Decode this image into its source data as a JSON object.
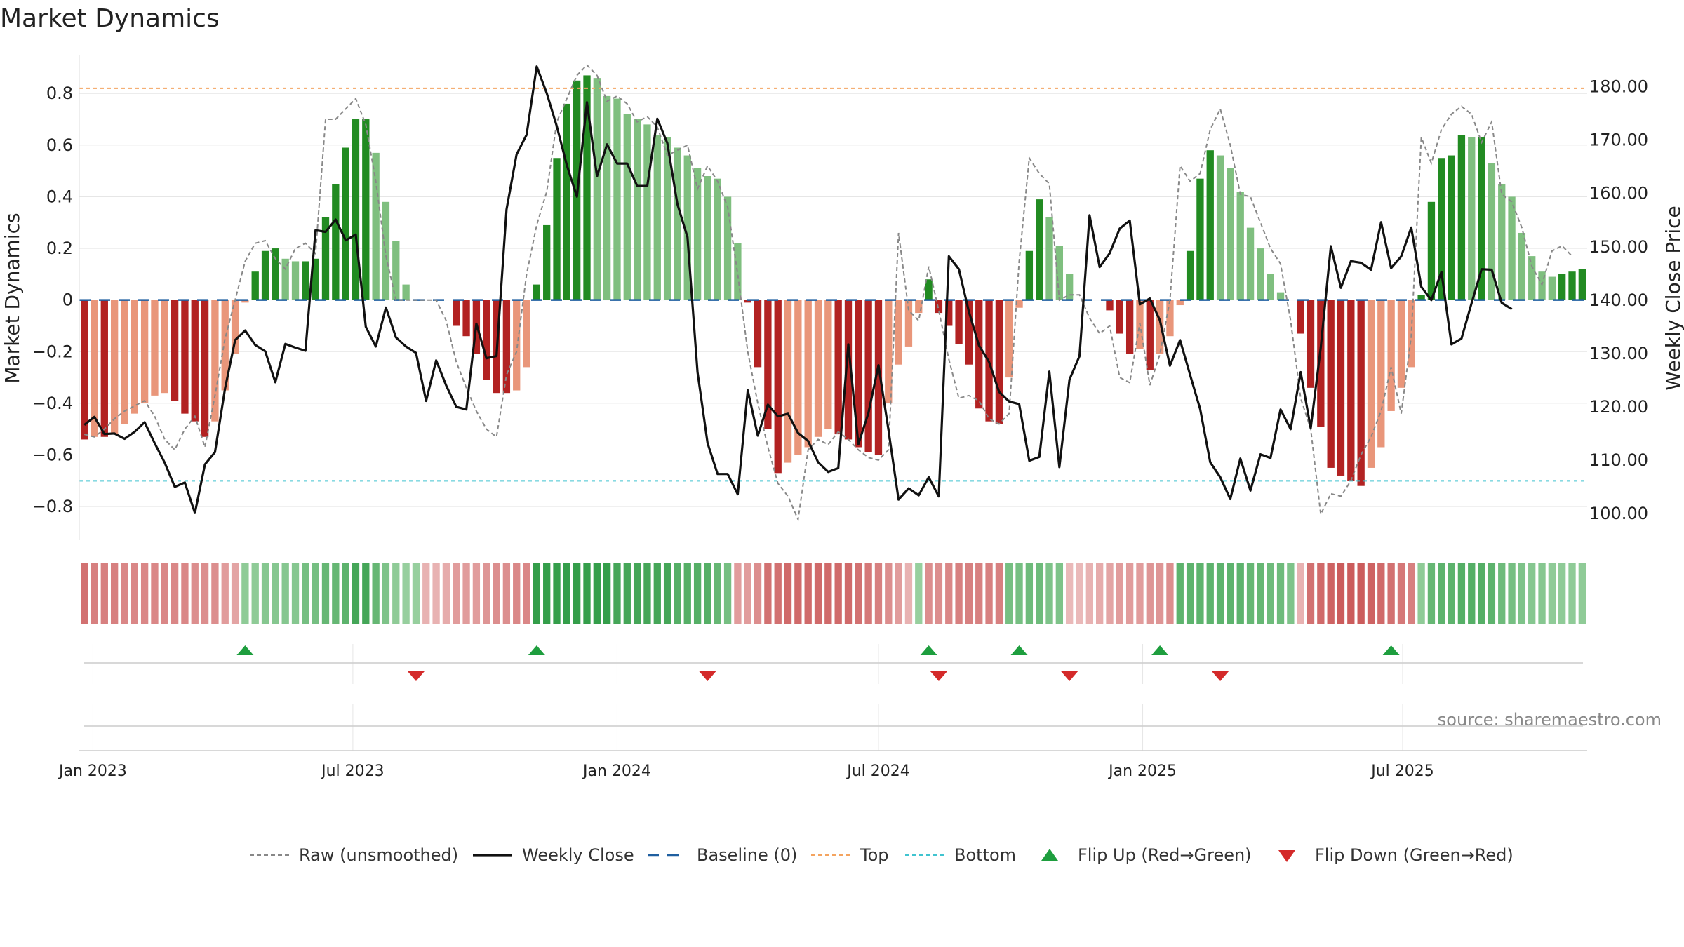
{
  "chart_data": {
    "type": "bar",
    "title": "Market Dynamics",
    "ylabel_left": "Market Dynamics",
    "ylabel_right": "Weekly Close Price",
    "ylim_left": [
      -0.93,
      0.95
    ],
    "ylim_right": [
      95,
      186
    ],
    "yticks_left": [
      -0.8,
      -0.6,
      -0.4,
      -0.2,
      0,
      0.2,
      0.4,
      0.6,
      0.8
    ],
    "yticks_left_labels": [
      "−0.8",
      "−0.6",
      "−0.4",
      "−0.2",
      "0",
      "0.2",
      "0.4",
      "0.6",
      "0.8"
    ],
    "yticks_right": [
      100,
      110,
      120,
      130,
      140,
      150,
      160,
      170,
      180
    ],
    "yticks_right_labels": [
      "100.00",
      "110.00",
      "120.00",
      "130.00",
      "140.00",
      "150.00",
      "160.00",
      "170.00",
      "180.00"
    ],
    "x_start": "2022-12-26",
    "x_step_days": 7,
    "date_ticks": [
      {
        "label": "Jan 2023",
        "date": "2023-01-01"
      },
      {
        "label": "Jul 2023",
        "date": "2023-07-01"
      },
      {
        "label": "Jan 2024",
        "date": "2024-01-01"
      },
      {
        "label": "Jul 2024",
        "date": "2024-07-01"
      },
      {
        "label": "Jan 2025",
        "date": "2025-01-01"
      },
      {
        "label": "Jul 2025",
        "date": "2025-07-01"
      }
    ],
    "top_level": 0.82,
    "bottom_level": -0.7,
    "baseline": 0,
    "smoothed": [
      -0.54,
      -0.53,
      -0.53,
      -0.52,
      -0.48,
      -0.44,
      -0.4,
      -0.37,
      -0.36,
      -0.39,
      -0.44,
      -0.47,
      -0.53,
      -0.47,
      -0.35,
      -0.21,
      -0.01,
      0.11,
      0.19,
      0.2,
      0.16,
      0.15,
      0.15,
      0.16,
      0.32,
      0.45,
      0.59,
      0.7,
      0.7,
      0.57,
      0.38,
      0.23,
      0.06,
      0.0,
      0.0,
      0.0,
      0.0,
      -0.1,
      -0.14,
      -0.21,
      -0.31,
      -0.36,
      -0.36,
      -0.35,
      -0.26,
      0.06,
      0.29,
      0.55,
      0.76,
      0.85,
      0.87,
      0.86,
      0.79,
      0.78,
      0.72,
      0.7,
      0.68,
      0.64,
      0.63,
      0.59,
      0.56,
      0.51,
      0.48,
      0.47,
      0.4,
      0.22,
      -0.01,
      -0.26,
      -0.5,
      -0.67,
      -0.63,
      -0.6,
      -0.57,
      -0.53,
      -0.5,
      -0.52,
      -0.54,
      -0.57,
      -0.59,
      -0.6,
      -0.4,
      -0.25,
      -0.18,
      -0.05,
      0.08,
      -0.05,
      -0.1,
      -0.17,
      -0.25,
      -0.42,
      -0.47,
      -0.48,
      -0.3,
      -0.03,
      0.19,
      0.39,
      0.32,
      0.21,
      0.1,
      0.0,
      0.0,
      0.0,
      -0.04,
      -0.13,
      -0.21,
      -0.19,
      -0.27,
      -0.21,
      -0.14,
      -0.02,
      0.19,
      0.47,
      0.58,
      0.56,
      0.51,
      0.42,
      0.28,
      0.2,
      0.1,
      0.03,
      0.0,
      -0.13,
      -0.34,
      -0.49,
      -0.65,
      -0.68,
      -0.7,
      -0.72,
      -0.65,
      -0.57,
      -0.43,
      -0.34,
      -0.26,
      0.02,
      0.38,
      0.55,
      0.56,
      0.64,
      0.63,
      0.63,
      0.53,
      0.45,
      0.4,
      0.26,
      0.17,
      0.11,
      0.09,
      0.1,
      0.11,
      0.12
    ],
    "raw": [
      -0.52,
      -0.53,
      -0.5,
      -0.46,
      -0.43,
      -0.41,
      -0.39,
      -0.45,
      -0.54,
      -0.58,
      -0.5,
      -0.45,
      -0.57,
      -0.37,
      -0.15,
      0.0,
      0.15,
      0.22,
      0.23,
      0.16,
      0.12,
      0.2,
      0.22,
      0.18,
      0.7,
      0.7,
      0.74,
      0.78,
      0.68,
      0.46,
      0.17,
      0.0,
      0.0,
      0.0,
      0.0,
      0.0,
      -0.08,
      -0.24,
      -0.34,
      -0.43,
      -0.5,
      -0.53,
      -0.29,
      -0.2,
      0.1,
      0.29,
      0.42,
      0.69,
      0.78,
      0.87,
      0.91,
      0.87,
      0.77,
      0.79,
      0.76,
      0.69,
      0.71,
      0.67,
      0.56,
      0.58,
      0.6,
      0.43,
      0.52,
      0.46,
      0.36,
      0.1,
      -0.2,
      -0.4,
      -0.57,
      -0.71,
      -0.76,
      -0.85,
      -0.58,
      -0.54,
      -0.56,
      -0.51,
      -0.54,
      -0.58,
      -0.61,
      -0.62,
      -0.58,
      0.26,
      -0.04,
      -0.08,
      0.13,
      -0.04,
      -0.23,
      -0.38,
      -0.37,
      -0.39,
      -0.46,
      -0.48,
      -0.44,
      0.15,
      0.55,
      0.49,
      0.45,
      0.0,
      0.02,
      0.02,
      -0.07,
      -0.13,
      -0.1,
      -0.3,
      -0.32,
      -0.09,
      -0.33,
      -0.21,
      0.0,
      0.52,
      0.46,
      0.49,
      0.66,
      0.74,
      0.6,
      0.41,
      0.4,
      0.3,
      0.2,
      0.14,
      -0.08,
      -0.38,
      -0.5,
      -0.83,
      -0.75,
      -0.76,
      -0.7,
      -0.6,
      -0.53,
      -0.43,
      -0.26,
      -0.44,
      -0.14,
      0.63,
      0.53,
      0.66,
      0.72,
      0.75,
      0.72,
      0.61,
      0.69,
      0.41,
      0.38,
      0.28,
      0.13,
      0.06,
      0.19,
      0.21,
      0.17
    ],
    "close": [
      116.6,
      118.1,
      114.9,
      115.0,
      114.0,
      115.3,
      117.1,
      113.2,
      109.5,
      105.0,
      105.8,
      100.1,
      109.2,
      111.5,
      123.4,
      132.5,
      134.3,
      131.6,
      130.4,
      124.6,
      131.8,
      131.1,
      130.5,
      153.1,
      152.8,
      155.1,
      151.2,
      152.3,
      135.0,
      131.3,
      138.6,
      133.0,
      131.3,
      130.1,
      121.1,
      128.7,
      124.0,
      120.0,
      119.5,
      135.6,
      129.1,
      129.5,
      157.0,
      167.3,
      171.0,
      183.8,
      178.8,
      172.6,
      165.3,
      159.4,
      177.1,
      163.2,
      169.2,
      165.6,
      165.6,
      161.4,
      161.4,
      174.0,
      169.4,
      158.0,
      151.8,
      126.5,
      113.2,
      107.4,
      107.4,
      103.6,
      123.1,
      114.6,
      120.4,
      118.2,
      118.7,
      115.1,
      113.6,
      109.6,
      107.8,
      108.5,
      131.7,
      113.0,
      118.8,
      127.8,
      115.6,
      102.6,
      104.7,
      103.4,
      106.8,
      103.2,
      148.2,
      145.8,
      137.8,
      131.5,
      128.4,
      122.8,
      121.0,
      120.5,
      109.9,
      110.6,
      126.6,
      108.7,
      125.1,
      129.5,
      155.9,
      146.2,
      148.8,
      153.4,
      154.9,
      139.2,
      140.3,
      136.2,
      127.7,
      132.5,
      126.0,
      119.6,
      109.6,
      106.8,
      102.7,
      110.3,
      104.3,
      111.1,
      110.4,
      119.5,
      115.8,
      126.5,
      116.0,
      131.1,
      150.1,
      142.3,
      147.3,
      147.0,
      145.7,
      154.6,
      146.0,
      148.2,
      153.6,
      142.5,
      140.0,
      145.3,
      131.7,
      132.8,
      139.4,
      145.8,
      145.7,
      139.5,
      138.3
    ],
    "strip": [
      -0.7,
      -0.6,
      -0.6,
      -0.6,
      -0.55,
      -0.55,
      -0.55,
      -0.55,
      -0.55,
      -0.55,
      -0.55,
      -0.5,
      -0.5,
      -0.5,
      -0.4,
      -0.35,
      0.35,
      0.35,
      0.4,
      0.4,
      0.4,
      0.4,
      0.5,
      0.5,
      0.6,
      0.6,
      0.65,
      0.8,
      0.8,
      0.6,
      0.45,
      0.35,
      0.3,
      0.3,
      -0.25,
      -0.25,
      -0.3,
      -0.4,
      -0.4,
      -0.4,
      -0.45,
      -0.5,
      -0.5,
      -0.55,
      -0.55,
      0.9,
      0.9,
      0.9,
      0.9,
      0.9,
      0.9,
      0.9,
      0.9,
      0.8,
      0.8,
      0.8,
      0.8,
      0.8,
      0.8,
      0.7,
      0.7,
      0.7,
      0.7,
      0.6,
      0.5,
      -0.4,
      -0.4,
      -0.5,
      -0.7,
      -0.7,
      -0.75,
      -0.75,
      -0.75,
      -0.75,
      -0.75,
      -0.75,
      -0.75,
      -0.7,
      -0.65,
      -0.6,
      -0.5,
      -0.4,
      -0.25,
      0.3,
      -0.5,
      -0.5,
      -0.55,
      -0.6,
      -0.6,
      -0.6,
      -0.6,
      -0.6,
      0.5,
      0.5,
      0.55,
      0.55,
      0.45,
      0.45,
      -0.2,
      -0.2,
      -0.25,
      -0.3,
      -0.35,
      -0.4,
      -0.4,
      -0.4,
      -0.45,
      -0.45,
      -0.5,
      0.65,
      0.65,
      0.65,
      0.65,
      0.65,
      0.65,
      0.65,
      0.6,
      0.6,
      0.55,
      0.55,
      0.45,
      -0.25,
      -0.7,
      -0.75,
      -0.8,
      -0.85,
      -0.85,
      -0.85,
      -0.8,
      -0.75,
      -0.7,
      -0.65,
      -0.6,
      0.35,
      0.6,
      0.65,
      0.65,
      0.7,
      0.7,
      0.7,
      0.65,
      0.55,
      0.5,
      0.45,
      0.4,
      0.4,
      0.35,
      0.35,
      0.35,
      0.35
    ],
    "flip_up_weeks": [
      16,
      45,
      84,
      93,
      107,
      130
    ],
    "flip_down_weeks": [
      33,
      62,
      85,
      98,
      113
    ],
    "legend": [
      {
        "key": "raw",
        "label": "Raw (unsmoothed)"
      },
      {
        "key": "close",
        "label": "Weekly Close"
      },
      {
        "key": "baseline",
        "label": "Baseline (0)"
      },
      {
        "key": "top",
        "label": "Top"
      },
      {
        "key": "bottom",
        "label": "Bottom"
      },
      {
        "key": "flip_up",
        "label": "Flip Up (Red→Green)"
      },
      {
        "key": "flip_down",
        "label": "Flip Down (Green→Red)"
      }
    ],
    "source": "source: sharemaestro.com",
    "colors": {
      "bull_strong": "#228b22",
      "bull_weak": "#7fbf7f",
      "bear_strong": "#b22222",
      "bear_weak": "#e9967a",
      "top": "#f4a460",
      "bottom": "#40c4d0",
      "baseline": "#1f5fa0",
      "raw": "#888888",
      "close": "#111111",
      "flip_up": "#1e9e3e",
      "flip_down": "#d42a2a",
      "grid": "#e6e6e6"
    }
  }
}
